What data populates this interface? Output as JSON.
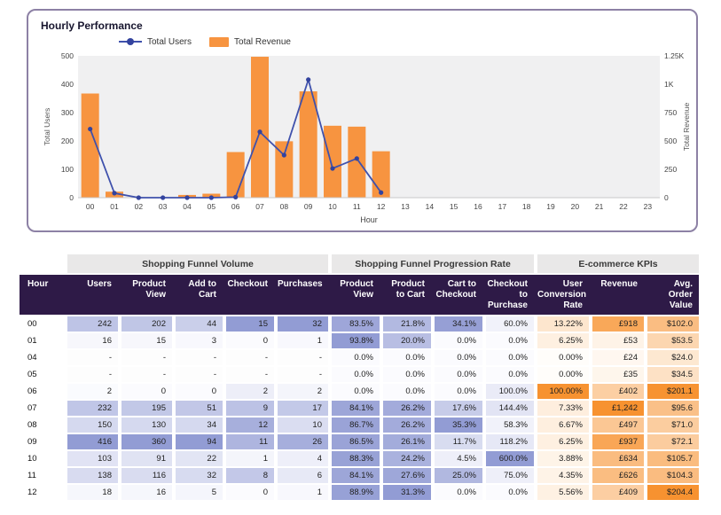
{
  "title": "Hourly Performance",
  "legend": {
    "users_label": "Total Users",
    "revenue_label": "Total Revenue"
  },
  "colors": {
    "bar": "#F79440",
    "line": "#3F51AC",
    "marker": "#33439E",
    "plot_bg": "#F0F0F1",
    "axis_text": "#444444",
    "card_border": "#8D81A5",
    "header_bg": "#2E1A47",
    "header_text": "#FFFFFF",
    "group_header_bg": "#E9E8E8",
    "heat_blue_max": "#929CD4",
    "heat_orange_max": "#F79230"
  },
  "chart_data": {
    "type": "combo",
    "title": "Hourly Performance",
    "xlabel": "Hour",
    "grid": false,
    "legend_position": "top-left",
    "x": [
      "00",
      "01",
      "02",
      "03",
      "04",
      "05",
      "06",
      "07",
      "08",
      "09",
      "10",
      "11",
      "12",
      "13",
      "14",
      "15",
      "16",
      "17",
      "18",
      "19",
      "20",
      "21",
      "22",
      "23"
    ],
    "series": [
      {
        "name": "Total Users",
        "type": "line",
        "yaxis": "left",
        "values": [
          242,
          16,
          0,
          0,
          0,
          0,
          2,
          232,
          150,
          416,
          103,
          138,
          18,
          null,
          null,
          null,
          null,
          null,
          null,
          null,
          null,
          null,
          null,
          null
        ]
      },
      {
        "name": "Total Revenue",
        "type": "bar",
        "yaxis": "right",
        "values": [
          918,
          53,
          null,
          null,
          24,
          35,
          402,
          1242,
          497,
          937,
          634,
          626,
          409,
          null,
          null,
          null,
          null,
          null,
          null,
          null,
          null,
          null,
          null,
          null
        ]
      }
    ],
    "left_axis": {
      "title": "Total Users",
      "range": [
        0,
        500
      ],
      "ticks": [
        0,
        100,
        200,
        300,
        400,
        500
      ]
    },
    "right_axis": {
      "title": "Total Revenue",
      "range": [
        0,
        1250
      ],
      "ticks": [
        0,
        250,
        500,
        750,
        1000,
        1250
      ],
      "tick_labels": [
        "0",
        "250",
        "500",
        "750",
        "1K",
        "1.25K"
      ]
    }
  },
  "table": {
    "group_headers": [
      "Shopping Funnel Volume",
      "Shopping Funnel Progression Rate",
      "E-commerce KPIs"
    ],
    "columns": [
      "Hour",
      "Users",
      "Product View",
      "Add to Cart",
      "Checkout",
      "Purchases",
      "Product View",
      "Product to Cart",
      "Cart to Checkout",
      "Checkout to Purchase",
      "User Conversion Rate",
      "Revenue",
      "Avg. Order Value"
    ],
    "rows": [
      [
        "00",
        "242",
        "202",
        "44",
        "15",
        "32",
        "83.5%",
        "21.8%",
        "34.1%",
        "60.0%",
        "13.22%",
        "£918",
        "$102.0"
      ],
      [
        "01",
        "16",
        "15",
        "3",
        "0",
        "1",
        "93.8%",
        "20.0%",
        "0.0%",
        "0.0%",
        "6.25%",
        "£53",
        "$53.5"
      ],
      [
        "04",
        "-",
        "-",
        "-",
        "-",
        "-",
        "0.0%",
        "0.0%",
        "0.0%",
        "0.0%",
        "0.00%",
        "£24",
        "$24.0"
      ],
      [
        "05",
        "-",
        "-",
        "-",
        "-",
        "-",
        "0.0%",
        "0.0%",
        "0.0%",
        "0.0%",
        "0.00%",
        "£35",
        "$34.5"
      ],
      [
        "06",
        "2",
        "0",
        "0",
        "2",
        "2",
        "0.0%",
        "0.0%",
        "0.0%",
        "100.0%",
        "100.00%",
        "£402",
        "$201.1"
      ],
      [
        "07",
        "232",
        "195",
        "51",
        "9",
        "17",
        "84.1%",
        "26.2%",
        "17.6%",
        "144.4%",
        "7.33%",
        "£1,242",
        "$95.6"
      ],
      [
        "08",
        "150",
        "130",
        "34",
        "12",
        "10",
        "86.7%",
        "26.2%",
        "35.3%",
        "58.3%",
        "6.67%",
        "£497",
        "$71.0"
      ],
      [
        "09",
        "416",
        "360",
        "94",
        "11",
        "26",
        "86.5%",
        "26.1%",
        "11.7%",
        "118.2%",
        "6.25%",
        "£937",
        "$72.1"
      ],
      [
        "10",
        "103",
        "91",
        "22",
        "1",
        "4",
        "88.3%",
        "24.2%",
        "4.5%",
        "600.0%",
        "3.88%",
        "£634",
        "$105.7"
      ],
      [
        "11",
        "138",
        "116",
        "32",
        "8",
        "6",
        "84.1%",
        "27.6%",
        "25.0%",
        "75.0%",
        "4.35%",
        "£626",
        "$104.3"
      ],
      [
        "12",
        "18",
        "16",
        "5",
        "0",
        "1",
        "88.9%",
        "31.3%",
        "0.0%",
        "0.0%",
        "5.56%",
        "£409",
        "$204.4"
      ]
    ]
  }
}
